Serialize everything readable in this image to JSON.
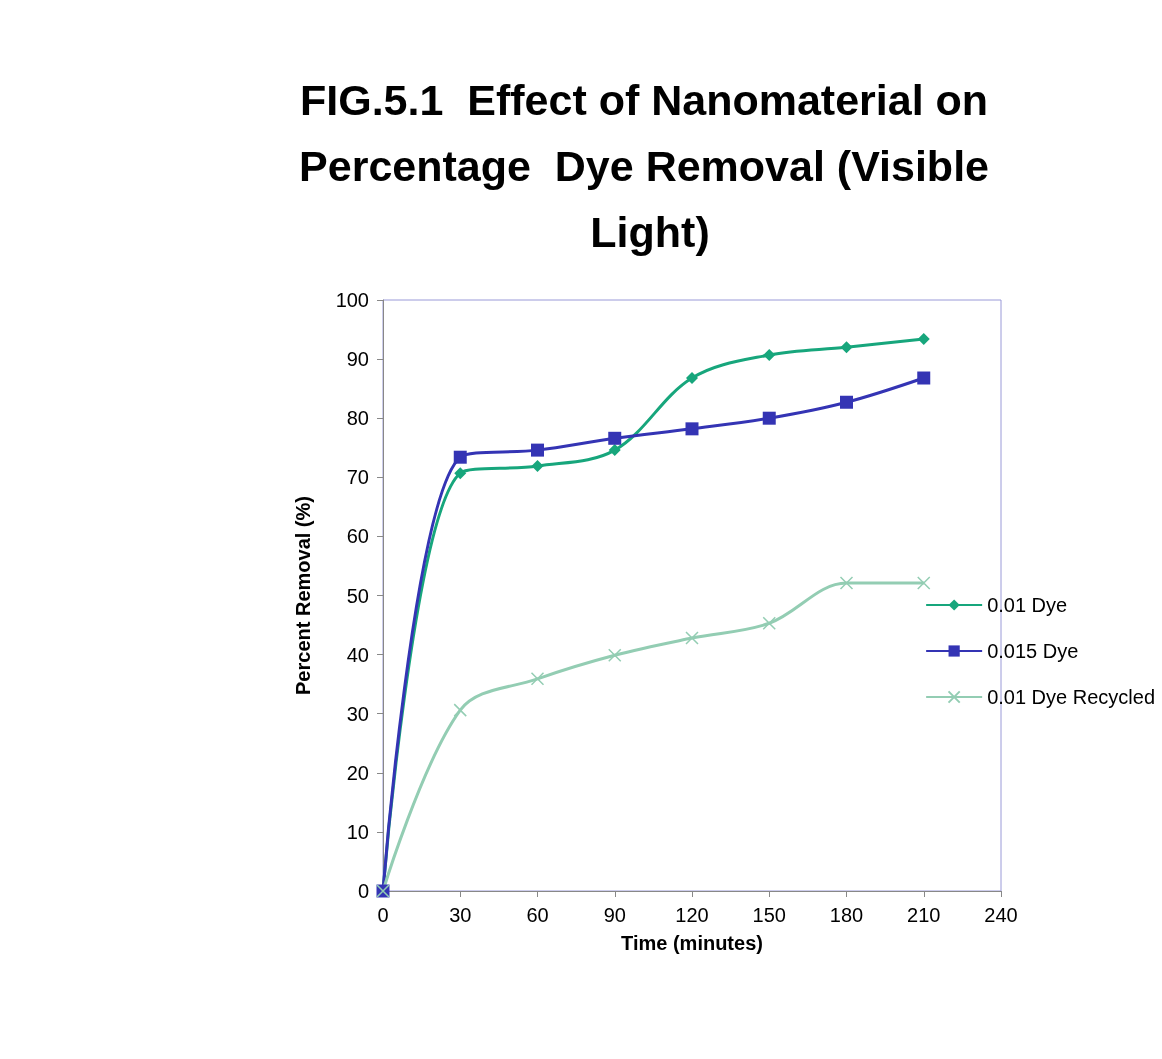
{
  "chart_data": {
    "type": "line",
    "title": "FIG.5.1  Effect of Nanomaterial on Percentage  Dye Removal (Visible Light)",
    "xlabel": "Time (minutes)",
    "ylabel": "Percent Removal (%)",
    "x": [
      0,
      30,
      60,
      90,
      120,
      150,
      180,
      210
    ],
    "series": [
      {
        "name": "0.01 Dye",
        "color": "#17a67c",
        "marker": "diamond",
        "values": [
          0,
          70.7,
          71.9,
          74.6,
          86.8,
          90.7,
          92.0,
          93.4
        ]
      },
      {
        "name": "0.015 Dye",
        "color": "#3434b4",
        "marker": "square",
        "values": [
          0,
          73.4,
          74.6,
          76.6,
          78.2,
          80.0,
          82.7,
          86.8
        ]
      },
      {
        "name": "0.01 Dye Recycled",
        "color": "#93cdb3",
        "marker": "cross",
        "values": [
          0,
          30.6,
          35.9,
          39.9,
          42.8,
          45.3,
          52.1,
          52.1
        ]
      }
    ],
    "xlim": [
      0,
      240
    ],
    "xticks": [
      0,
      30,
      60,
      90,
      120,
      150,
      180,
      210,
      240
    ],
    "ylim": [
      0,
      100
    ],
    "yticks": [
      0,
      10,
      20,
      30,
      40,
      50,
      60,
      70,
      80,
      90,
      100
    ],
    "grid": false,
    "legend": "right",
    "line_style": "solid"
  }
}
